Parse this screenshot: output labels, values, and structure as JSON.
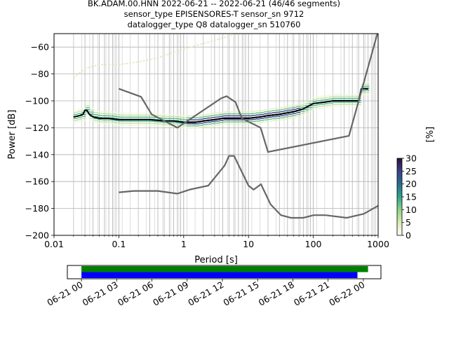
{
  "title": {
    "line1": "BK.ADAM.00.HNN   2022-06-21 -- 2022-06-21  (46/46 segments)",
    "line2": "sensor_type EPISENSORES-T sensor_sn 9712",
    "line3": "datalogger_type Q8 datalogger_sn 510760"
  },
  "chart_data": [
    {
      "type": "heatmap",
      "xlabel": "Period [s]",
      "ylabel": "Power [dB]",
      "xscale": "log",
      "xlim": [
        0.01,
        1000
      ],
      "ylim": [
        -200,
        -50
      ],
      "x_ticks": [
        "0.01",
        "0.1",
        "1",
        "10",
        "100",
        "1000"
      ],
      "y_ticks": [
        "-200",
        "-180",
        "-160",
        "-140",
        "-120",
        "-100",
        "-80",
        "-60"
      ],
      "grid": true,
      "colorbar": {
        "label": "[%]",
        "range": [
          0,
          30
        ],
        "ticks": [
          "0",
          "5",
          "10",
          "15",
          "20",
          "25",
          "30"
        ],
        "colors": [
          "#ffffff",
          "#d8edb0",
          "#8fd18a",
          "#2fa58a",
          "#2b6d8d",
          "#3b3f86",
          "#2c0f3f"
        ]
      },
      "series": [
        {
          "name": "mode",
          "color": "#000000",
          "points": [
            [
              0.02,
              -112
            ],
            [
              0.025,
              -111
            ],
            [
              0.028,
              -110
            ],
            [
              0.03,
              -107
            ],
            [
              0.032,
              -107
            ],
            [
              0.035,
              -110
            ],
            [
              0.04,
              -112
            ],
            [
              0.05,
              -113
            ],
            [
              0.07,
              -113
            ],
            [
              0.1,
              -114
            ],
            [
              0.15,
              -114
            ],
            [
              0.2,
              -114
            ],
            [
              0.3,
              -114
            ],
            [
              0.5,
              -115
            ],
            [
              0.7,
              -115
            ],
            [
              1,
              -116
            ],
            [
              1.5,
              -116
            ],
            [
              2,
              -115
            ],
            [
              3,
              -114
            ],
            [
              4,
              -113
            ],
            [
              6,
              -113
            ],
            [
              10,
              -113
            ],
            [
              15,
              -112
            ],
            [
              20,
              -111
            ],
            [
              30,
              -110
            ],
            [
              50,
              -108
            ],
            [
              70,
              -106
            ],
            [
              100,
              -102
            ],
            [
              150,
              -101
            ],
            [
              200,
              -100
            ],
            [
              300,
              -100
            ],
            [
              500,
              -100
            ],
            [
              550,
              -91
            ],
            [
              700,
              -91
            ]
          ]
        },
        {
          "name": "NHNM",
          "color": "#666666",
          "points": [
            [
              0.1,
              -91
            ],
            [
              0.22,
              -97
            ],
            [
              0.32,
              -110
            ],
            [
              0.8,
              -120
            ],
            [
              3.8,
              -98
            ],
            [
              4.6,
              -96.5
            ],
            [
              6.3,
              -101
            ],
            [
              7.9,
              -113
            ],
            [
              15.4,
              -120
            ],
            [
              20,
              -138
            ],
            [
              354.8,
              -126
            ],
            [
              10000,
              -48
            ]
          ]
        },
        {
          "name": "NLNM",
          "color": "#666666",
          "points": [
            [
              0.1,
              -168
            ],
            [
              0.17,
              -167
            ],
            [
              0.4,
              -167
            ],
            [
              0.8,
              -169
            ],
            [
              1.24,
              -166
            ],
            [
              2.4,
              -163
            ],
            [
              4.3,
              -148
            ],
            [
              5,
              -141
            ],
            [
              6,
              -141
            ],
            [
              10,
              -163
            ],
            [
              12,
              -166
            ],
            [
              15.6,
              -162
            ],
            [
              21.9,
              -177
            ],
            [
              31.6,
              -185
            ],
            [
              45,
              -187
            ],
            [
              70,
              -187
            ],
            [
              101,
              -185
            ],
            [
              154,
              -185
            ],
            [
              328,
              -187
            ],
            [
              600,
              -184
            ],
            [
              1000,
              -178
            ]
          ]
        },
        {
          "name": "upper-envelope",
          "color": "#dce9b8",
          "points": [
            [
              0.02,
              -83
            ],
            [
              0.03,
              -76
            ],
            [
              0.05,
              -73
            ],
            [
              0.1,
              -73
            ],
            [
              0.2,
              -71
            ],
            [
              0.4,
              -68
            ],
            [
              0.8,
              -63
            ],
            [
              1.5,
              -59
            ],
            [
              3,
              -55
            ],
            [
              5,
              -52
            ],
            [
              7,
              -50
            ]
          ]
        }
      ]
    },
    {
      "type": "timeline",
      "x_ticks": [
        "06-21 00",
        "06-21 03",
        "06-21 06",
        "06-21 09",
        "06-21 12",
        "06-21 15",
        "06-21 18",
        "06-21 21",
        "06-22 00"
      ],
      "xlim_hours": [
        -1.2,
        25.5
      ],
      "bars": [
        {
          "name": "data-availability",
          "color": "#008000",
          "start_h": 0,
          "end_h": 24.4
        },
        {
          "name": "psd-segments",
          "color": "#0000ff",
          "start_h": 0,
          "end_h": 23.5
        }
      ]
    }
  ]
}
